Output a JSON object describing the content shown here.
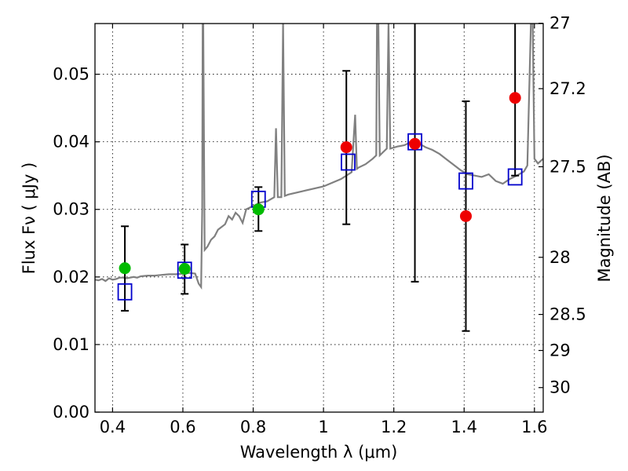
{
  "chart_data": {
    "type": "scatter",
    "xlabel": "Wavelength  λ (μm)",
    "ylabel": "Flux  Fν  ( μJy )",
    "y2label": "Magnitude (AB)",
    "xlim": [
      0.35,
      1.625
    ],
    "ylim": [
      0.0,
      0.0575
    ],
    "grid": true,
    "x_ticks": [
      0.4,
      0.6,
      0.8,
      1.0,
      1.2,
      1.4,
      1.6
    ],
    "x_tick_labels": [
      "0.4",
      "0.6",
      "0.8",
      "1",
      "1.2",
      "1.4",
      "1.6"
    ],
    "y_ticks": [
      0.0,
      0.01,
      0.02,
      0.03,
      0.04,
      0.05
    ],
    "y_tick_labels": [
      "0.00",
      "0.01",
      "0.02",
      "0.03",
      "0.04",
      "0.05"
    ],
    "mag_ticks": [
      27,
      27.2,
      27.5,
      28,
      28.5,
      29,
      30
    ],
    "mag_tick_labels": [
      "27",
      "27.2",
      "27.5",
      "28",
      "28.5",
      "29",
      "30"
    ],
    "colors": {
      "spectrum": "#808080",
      "green": "#00bb00",
      "red": "#ee0000",
      "model_box": "#0000cc",
      "errorbar": "#000000"
    },
    "spectrum": [
      [
        0.35,
        0.0196
      ],
      [
        0.36,
        0.0195
      ],
      [
        0.37,
        0.0197
      ],
      [
        0.38,
        0.0194
      ],
      [
        0.39,
        0.0198
      ],
      [
        0.4,
        0.0196
      ],
      [
        0.41,
        0.0197
      ],
      [
        0.42,
        0.0199
      ],
      [
        0.43,
        0.0199
      ],
      [
        0.44,
        0.0198
      ],
      [
        0.45,
        0.0199
      ],
      [
        0.46,
        0.02
      ],
      [
        0.47,
        0.0199
      ],
      [
        0.48,
        0.0201
      ],
      [
        0.5,
        0.0202
      ],
      [
        0.52,
        0.0202
      ],
      [
        0.54,
        0.0203
      ],
      [
        0.56,
        0.0204
      ],
      [
        0.58,
        0.0204
      ],
      [
        0.6,
        0.0205
      ],
      [
        0.62,
        0.0206
      ],
      [
        0.635,
        0.0205
      ],
      [
        0.645,
        0.019
      ],
      [
        0.652,
        0.0185
      ],
      [
        0.655,
        0.03
      ],
      [
        0.6563,
        0.0575
      ],
      [
        0.658,
        0.0575
      ],
      [
        0.662,
        0.024
      ],
      [
        0.67,
        0.0245
      ],
      [
        0.68,
        0.0255
      ],
      [
        0.69,
        0.026
      ],
      [
        0.7,
        0.027
      ],
      [
        0.72,
        0.0278
      ],
      [
        0.73,
        0.029
      ],
      [
        0.74,
        0.0285
      ],
      [
        0.75,
        0.0295
      ],
      [
        0.76,
        0.029
      ],
      [
        0.77,
        0.028
      ],
      [
        0.78,
        0.03
      ],
      [
        0.8,
        0.0305
      ],
      [
        0.82,
        0.031
      ],
      [
        0.84,
        0.0312
      ],
      [
        0.86,
        0.0318
      ],
      [
        0.865,
        0.042
      ],
      [
        0.87,
        0.0318
      ],
      [
        0.88,
        0.0318
      ],
      [
        0.885,
        0.0575
      ],
      [
        0.89,
        0.032
      ],
      [
        0.9,
        0.0322
      ],
      [
        0.95,
        0.0328
      ],
      [
        1.0,
        0.0334
      ],
      [
        1.05,
        0.0345
      ],
      [
        1.08,
        0.0355
      ],
      [
        1.09,
        0.044
      ],
      [
        1.095,
        0.036
      ],
      [
        1.1,
        0.0362
      ],
      [
        1.12,
        0.0367
      ],
      [
        1.14,
        0.0375
      ],
      [
        1.15,
        0.038
      ],
      [
        1.152,
        0.0575
      ],
      [
        1.156,
        0.0575
      ],
      [
        1.16,
        0.038
      ],
      [
        1.17,
        0.0385
      ],
      [
        1.18,
        0.039
      ],
      [
        1.185,
        0.0575
      ],
      [
        1.19,
        0.039
      ],
      [
        1.21,
        0.0393
      ],
      [
        1.23,
        0.0395
      ],
      [
        1.25,
        0.04
      ],
      [
        1.27,
        0.0398
      ],
      [
        1.29,
        0.0392
      ],
      [
        1.31,
        0.0388
      ],
      [
        1.33,
        0.0382
      ],
      [
        1.35,
        0.0374
      ],
      [
        1.37,
        0.0366
      ],
      [
        1.39,
        0.0358
      ],
      [
        1.41,
        0.0352
      ],
      [
        1.43,
        0.035
      ],
      [
        1.45,
        0.0348
      ],
      [
        1.47,
        0.0352
      ],
      [
        1.49,
        0.0342
      ],
      [
        1.51,
        0.0338
      ],
      [
        1.53,
        0.0345
      ],
      [
        1.55,
        0.035
      ],
      [
        1.57,
        0.0356
      ],
      [
        1.58,
        0.0365
      ],
      [
        1.59,
        0.0575
      ],
      [
        1.595,
        0.0575
      ],
      [
        1.6,
        0.0375
      ],
      [
        1.61,
        0.0368
      ],
      [
        1.625,
        0.0375
      ]
    ],
    "series": [
      {
        "name": "green",
        "marker": "circle",
        "points": [
          {
            "x": 0.435,
            "y": 0.0213,
            "yerr_low": 0.015,
            "yerr_high": 0.0275
          },
          {
            "x": 0.605,
            "y": 0.0212,
            "yerr_low": 0.0175,
            "yerr_high": 0.0248
          },
          {
            "x": 0.815,
            "y": 0.03,
            "yerr_low": 0.0268,
            "yerr_high": 0.0333
          }
        ]
      },
      {
        "name": "red",
        "marker": "circle",
        "points": [
          {
            "x": 1.065,
            "y": 0.0392,
            "yerr_low": 0.0278,
            "yerr_high": 0.0505
          },
          {
            "x": 1.26,
            "y": 0.0397,
            "yerr_low": 0.0193,
            "yerr_high": 0.0575
          },
          {
            "x": 1.405,
            "y": 0.029,
            "yerr_low": 0.012,
            "yerr_high": 0.046
          },
          {
            "x": 1.545,
            "y": 0.0465,
            "yerr_low": 0.035,
            "yerr_high": 0.0575
          }
        ]
      },
      {
        "name": "model",
        "marker": "square",
        "points": [
          {
            "x": 0.435,
            "y": 0.0178
          },
          {
            "x": 0.605,
            "y": 0.021
          },
          {
            "x": 0.815,
            "y": 0.0315
          },
          {
            "x": 1.07,
            "y": 0.037
          },
          {
            "x": 1.26,
            "y": 0.04
          },
          {
            "x": 1.405,
            "y": 0.0342
          },
          {
            "x": 1.545,
            "y": 0.0348
          }
        ]
      }
    ]
  }
}
